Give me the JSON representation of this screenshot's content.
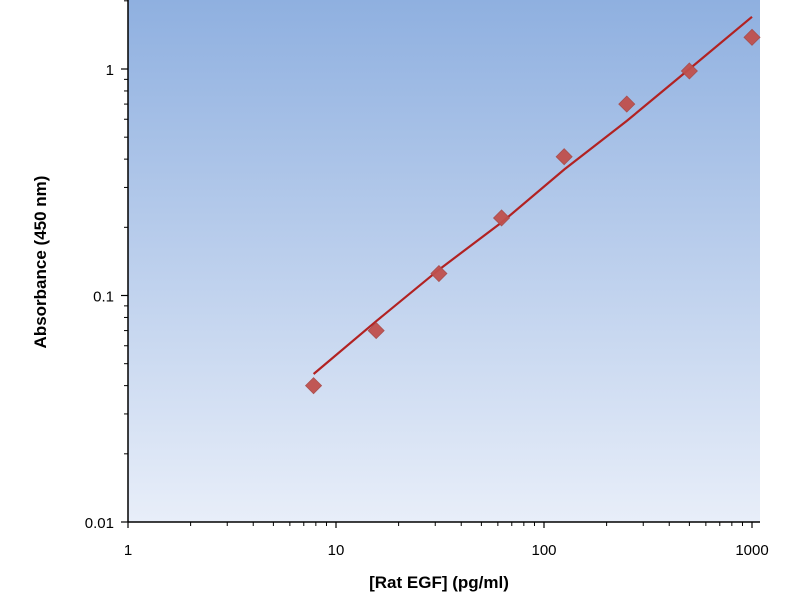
{
  "chart_data": {
    "type": "scatter",
    "title": "",
    "xlabel": "[Rat EGF] (pg/ml)",
    "ylabel": "Absorbance (450 nm)",
    "x_scale": "log",
    "y_scale": "log",
    "xlim": [
      1,
      1000
    ],
    "ylim": [
      0.01,
      2
    ],
    "x_ticks": [
      1,
      10,
      100,
      1000
    ],
    "x_tick_labels": [
      "1",
      "10",
      "100",
      "1000"
    ],
    "y_ticks": [
      0.01,
      0.1,
      1
    ],
    "y_tick_labels": [
      "0.01",
      "0.1",
      "1"
    ],
    "grid": false,
    "legend": "none",
    "series": [
      {
        "kind": "points",
        "marker": "diamond",
        "color": "#c0504d",
        "x": [
          7.8,
          15.6,
          31.25,
          62.5,
          125,
          250,
          500,
          1000
        ],
        "y": [
          0.04,
          0.07,
          0.125,
          0.22,
          0.41,
          0.7,
          0.98,
          1.38
        ]
      },
      {
        "kind": "fit-line",
        "color": "#b22222",
        "x": [
          7.8,
          15.6,
          31.25,
          62.5,
          125,
          250,
          500,
          1000
        ],
        "y": [
          0.045,
          0.077,
          0.13,
          0.21,
          0.36,
          0.59,
          1.0,
          1.7
        ]
      }
    ],
    "background_gradient": [
      "#8fb0e0",
      "#e8eef9"
    ]
  }
}
